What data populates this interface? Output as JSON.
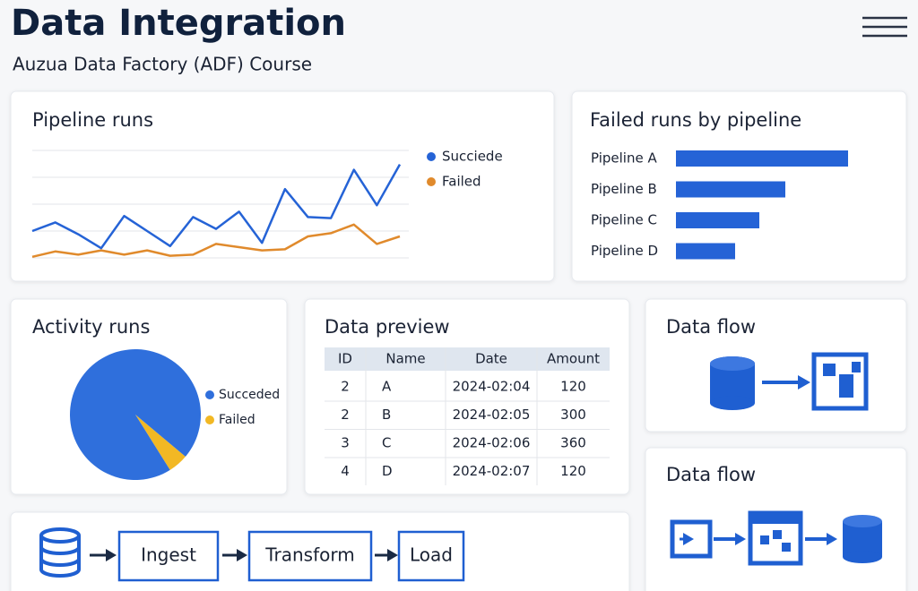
{
  "header": {
    "title": "Data Integration",
    "subtitle": "Auzua Data Factory (ADF) Course"
  },
  "pipeline_runs": {
    "type": "line",
    "title": "Pipeline runs",
    "ylim": [
      0,
      100
    ],
    "yticks": [
      0,
      25,
      50,
      75,
      100
    ],
    "grid": true,
    "legend": "right",
    "series": [
      {
        "name": "Succiede",
        "color": "#2563d6",
        "values": [
          25,
          33,
          22,
          9,
          39,
          25,
          11,
          38,
          27,
          43,
          14,
          64,
          38,
          37,
          82,
          49,
          87
        ]
      },
      {
        "name": "Failed",
        "color": "#e08a2c",
        "values": [
          1,
          6,
          3,
          7,
          3,
          7,
          2,
          3,
          13,
          10,
          7,
          8,
          20,
          23,
          31,
          13,
          20
        ]
      }
    ]
  },
  "failed_runs": {
    "type": "bar",
    "title": "Failed runs by pipeline",
    "orientation": "horizontal",
    "categories": [
      "Pipeline A",
      "Pipeline B",
      "Pipeline C",
      "Pipeline D"
    ],
    "values": [
      96,
      61,
      46.5,
      33
    ],
    "xlim": [
      0,
      100
    ],
    "color": "#2563d6"
  },
  "activity_runs": {
    "type": "pie",
    "title": "Activity runs",
    "categories": [
      "Succeded",
      "Failed"
    ],
    "values": [
      95,
      5
    ],
    "colors": [
      "#2f6fdc",
      "#f2b824"
    ],
    "legend": "right"
  },
  "data_preview": {
    "title": "Data preview",
    "table": {
      "columns": [
        "ID",
        "Name",
        "Date",
        "Amount"
      ],
      "rows": [
        [
          "2",
          "A",
          "2024-02:04",
          "120"
        ],
        [
          "2",
          "B",
          "2024-02:05",
          "300"
        ],
        [
          "3",
          "C",
          "2024-02:06",
          "360"
        ],
        [
          "4",
          "D",
          "2024-02:07",
          "120"
        ]
      ]
    }
  },
  "data_flows": [
    {
      "title": "Data flow"
    },
    {
      "title": "Data flow"
    }
  ],
  "pipeline": {
    "steps": [
      "Ingest",
      "Transform",
      "Load"
    ]
  }
}
